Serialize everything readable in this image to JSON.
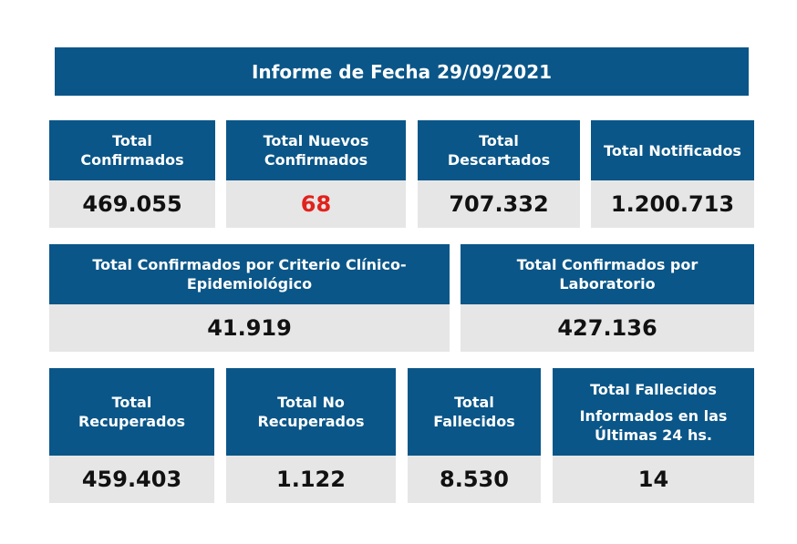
{
  "title": "Informe de Fecha 29/09/2021",
  "row1": [
    {
      "label": "Total\nConfirmados",
      "value": "469.055"
    },
    {
      "label": "Total Nuevos\nConfirmados",
      "value": "68"
    },
    {
      "label": "Total\nDescartados",
      "value": "707.332"
    },
    {
      "label": "Total Notificados",
      "value": "1.200.713"
    }
  ],
  "row2": [
    {
      "label": "Total Confirmados por Criterio Clínico-\nEpidemiológico",
      "value": "41.919"
    },
    {
      "label": "Total Confirmados por\nLaboratorio",
      "value": "427.136"
    }
  ],
  "row3": [
    {
      "label": "Total\nRecuperados",
      "value": "459.403"
    },
    {
      "label": "Total No\nRecuperados",
      "value": "1.122"
    },
    {
      "label": "Total\nFallecidos",
      "value": "8.530"
    },
    {
      "label_line1": "Total Fallecidos",
      "label_line2": "Informados en las\nÚltimas 24 hs.",
      "value": "14"
    }
  ],
  "colors": {
    "header": "#0a5688",
    "value_bg": "#e6e6e6",
    "highlight": "#e0231c"
  }
}
